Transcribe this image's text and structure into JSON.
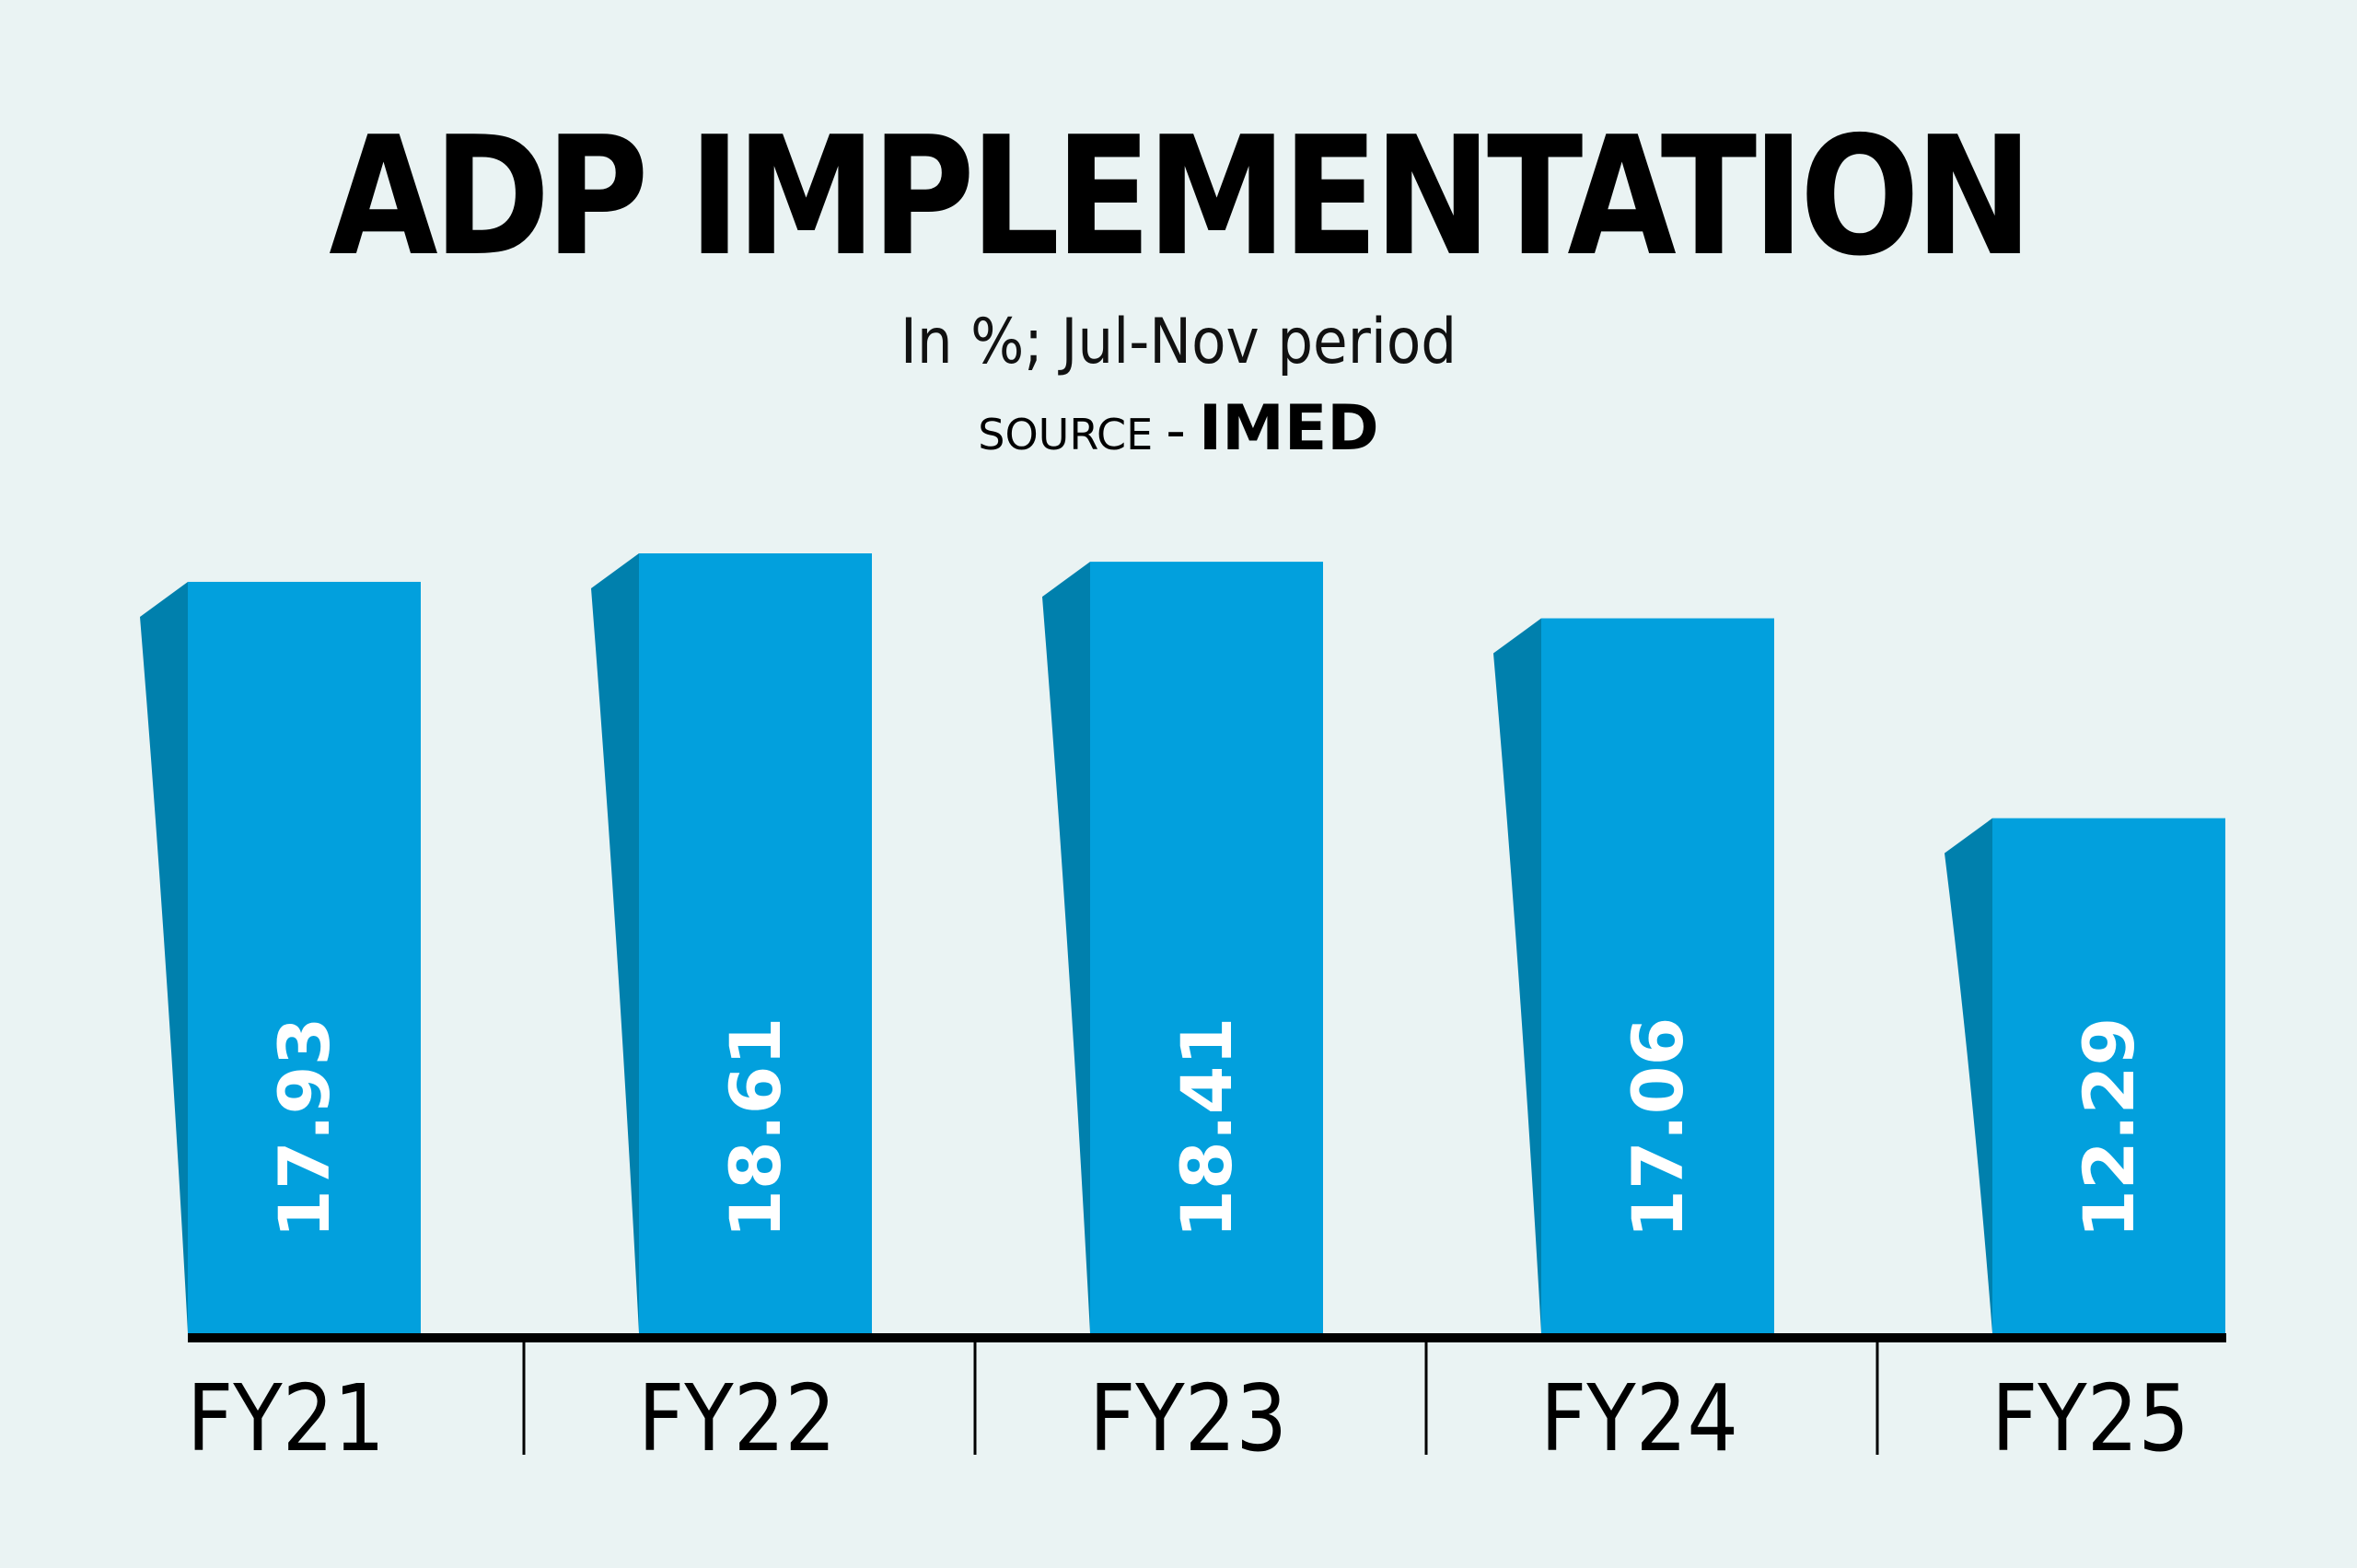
{
  "chart_data": {
    "type": "bar",
    "title": "ADP IMPLEMENTATION",
    "subtitle": "In %; Jul-Nov period",
    "source_label": "SOURCE",
    "source_dash": "-",
    "source": "IMED",
    "categories": [
      "FY21",
      "FY22",
      "FY23",
      "FY24",
      "FY25"
    ],
    "values": [
      17.93,
      18.61,
      18.41,
      17.06,
      12.29
    ],
    "value_labels": [
      "17.93",
      "18.61",
      "18.41",
      "17.06",
      "12.29"
    ],
    "xlabel": "",
    "ylabel": "",
    "ylim": [
      0,
      21.5
    ],
    "grid": false,
    "legend": "none",
    "colors": {
      "bar_front": "#02a0dd",
      "bar_side": "#0080ad",
      "axis": "#000000",
      "background": "#eaf3f3",
      "label": "#ffffff"
    }
  }
}
